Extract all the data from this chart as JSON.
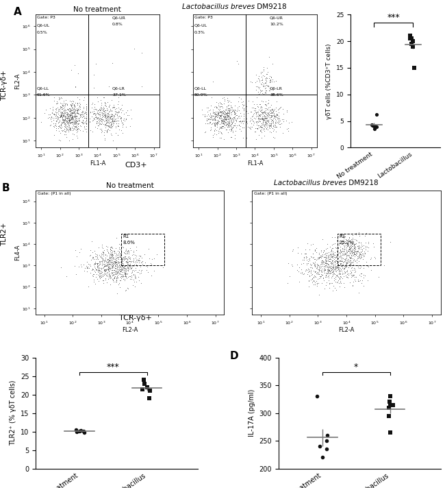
{
  "panel_A_title1": "No treatment",
  "panel_A_title2_italic": "Lactobacillus breves",
  "panel_A_title2_normal": " DM9218",
  "panel_A_gate": "Gate: P3",
  "panel_A_xaxis": "CD3+",
  "panel_A_yaxis": "TCR-γδ+",
  "panel_A_FL_xlabel": "FL1-A",
  "panel_A_FL_ylabel": "FL2-A",
  "panel_A_left_Q": {
    "UL": "Q6-UL\n0.5%",
    "UR": "Q6-UR\n0.8%",
    "LL": "Q6-LL\n61.6%",
    "LR": "Q6-LR\n37.1%"
  },
  "panel_A_right_Q": {
    "UL": "Q6-UL\n0.3%",
    "UR": "Q6-UR\n10.2%",
    "LL": "Q6-LL\n50.9%",
    "LR": "Q6-LR\n38.6%"
  },
  "scatter_A_no_treatment": [
    3.5,
    4.0,
    4.2,
    4.1,
    3.9,
    6.2,
    4.3
  ],
  "scatter_A_lactobacillus": [
    19.5,
    20.5,
    19.0,
    21.0,
    20.0,
    15.0,
    20.5
  ],
  "scatter_A_ylabel": "γδT cells (%CD3⁺T cells)",
  "scatter_A_ylim": [
    0,
    25
  ],
  "scatter_A_yticks": [
    0,
    5,
    10,
    15,
    20,
    25
  ],
  "scatter_A_sig": "***",
  "panel_B_title1": "No treatment",
  "panel_B_title2_italic": "Lactobacillus breves",
  "panel_B_title2_normal": " DM9218",
  "panel_B_gate": "Gate: (P1 in all)",
  "panel_B_left_R1": "8.0%",
  "panel_B_right_R1": "25.2%",
  "panel_B_xaxis": "TCR-γδ+",
  "panel_B_yaxis": "TLR2+",
  "panel_B_FL_xlabel": "FL2-A",
  "panel_B_FL_ylabel": "FL4-A",
  "scatter_C_no_treatment": [
    10.0,
    10.2,
    10.5,
    9.8,
    10.1,
    10.3
  ],
  "scatter_C_lactobacillus": [
    21.0,
    22.0,
    23.0,
    24.0,
    21.5,
    19.0
  ],
  "scatter_C_ylabel": "TLR2⁺ (% γδT cells)",
  "scatter_C_ylim": [
    0,
    30
  ],
  "scatter_C_yticks": [
    0,
    5,
    10,
    15,
    20,
    25,
    30
  ],
  "scatter_C_sig": "***",
  "scatter_D_no_treatment": [
    250.0,
    260.0,
    235.0,
    220.0,
    240.0,
    330.0
  ],
  "scatter_D_lactobacillus": [
    295.0,
    310.0,
    315.0,
    320.0,
    265.0,
    330.0,
    315.0
  ],
  "scatter_D_ylabel": "IL-17A (pg/ml)",
  "scatter_D_ylim": [
    200,
    400
  ],
  "scatter_D_yticks": [
    200,
    250,
    300,
    350,
    400
  ],
  "scatter_D_sig": "*",
  "bg_color": "#ffffff",
  "flow_dot_color": "#555555",
  "dot_color": "#111111",
  "mean_line_color": "#777777"
}
